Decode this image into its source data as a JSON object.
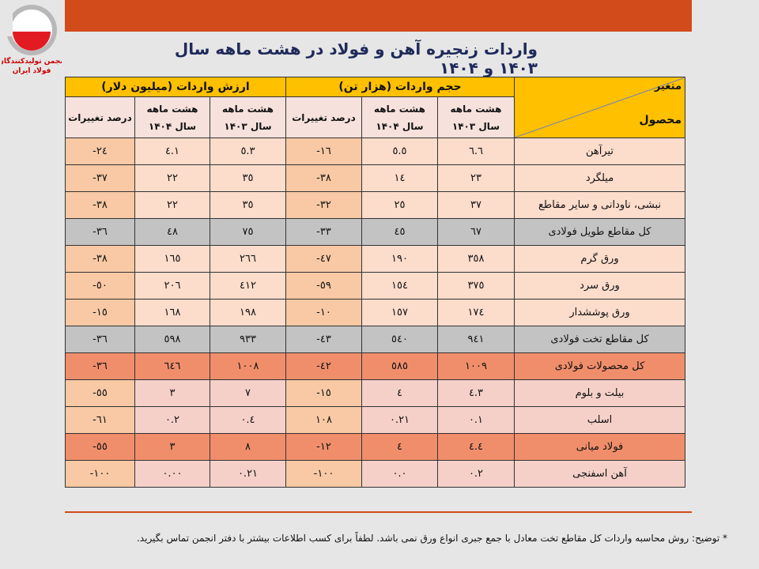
{
  "logo_text": [
    "انجمن تولیدکنندگان",
    "فولاد ایران"
  ],
  "colors": {
    "brand_bar": "#d24b1a",
    "header": "#ffc000",
    "total_row": "#f08e6b",
    "subtotal_row": "#c3c3c3"
  },
  "title": "واردات زنجیره آهن و فولاد در هشت ماهه سال ۱۴۰۳ و ۱۴۰۴",
  "table": {
    "corner_top": "متغیر",
    "corner_bottom": "محصول",
    "group_volume": "حجم واردات (هزار تن)",
    "group_value": "ارزش واردات (میلیون دلار)",
    "col_1403": [
      "هشت ماهه",
      "سال ۱۴۰۳"
    ],
    "col_1404": [
      "هشت ماهه",
      "سال ۱۴۰۴"
    ],
    "col_pct": "درصد تغییرات",
    "rows": [
      {
        "name": "تیرآهن",
        "v03": "٦.٦",
        "v04": "٥.٥",
        "vp": "-١٦",
        "d03": "٥.٣",
        "d04": "٤.١",
        "dp": "-٢٤",
        "style": ""
      },
      {
        "name": "میلگرد",
        "v03": "٢٣",
        "v04": "١٤",
        "vp": "-٣٨",
        "d03": "٣٥",
        "d04": "٢٢",
        "dp": "-٣٧",
        "style": ""
      },
      {
        "name": "نبشی، ناودانی و سایر مقاطع",
        "v03": "٣٧",
        "v04": "٢٥",
        "vp": "-٣٢",
        "d03": "٣٥",
        "d04": "٢٢",
        "dp": "-٣٨",
        "style": ""
      },
      {
        "name": "کل مقاطع طویل فولادی",
        "v03": "٦٧",
        "v04": "٤٥",
        "vp": "-٣٣",
        "d03": "٧٥",
        "d04": "٤٨",
        "dp": "-٣٦",
        "style": "gray"
      },
      {
        "name": "ورق گرم",
        "v03": "٣٥٨",
        "v04": "١٩٠",
        "vp": "-٤٧",
        "d03": "٢٦٦",
        "d04": "١٦٥",
        "dp": "-٣٨",
        "style": ""
      },
      {
        "name": "ورق سرد",
        "v03": "٣٧٥",
        "v04": "١٥٤",
        "vp": "-٥٩",
        "d03": "٤١٢",
        "d04": "٢٠٦",
        "dp": "-٥٠",
        "style": ""
      },
      {
        "name": "ورق پوششدار",
        "v03": "١٧٤",
        "v04": "١٥٧",
        "vp": "-١٠",
        "d03": "١٩٨",
        "d04": "١٦٨",
        "dp": "-١٥",
        "style": ""
      },
      {
        "name": "کل مقاطع تخت فولادی",
        "v03": "٩٤١",
        "v04": "٥٤٠",
        "vp": "-٤٣",
        "d03": "٩٣٣",
        "d04": "٥٩٨",
        "dp": "-٣٦",
        "style": "gray"
      },
      {
        "name": "کل محصولات فولادی",
        "v03": "١٠٠٩",
        "v04": "٥٨٥",
        "vp": "-٤٢",
        "d03": "١٠٠٨",
        "d04": "٦٤٦",
        "dp": "-٣٦",
        "style": "total"
      },
      {
        "name": "بیلت و بلوم",
        "v03": "٤.٣",
        "v04": "٤",
        "vp": "-١٥",
        "d03": "٧",
        "d04": "٣",
        "dp": "-٥٥",
        "style": "pink"
      },
      {
        "name": "اسلب",
        "v03": "٠.١",
        "v04": "٠.٢١",
        "vp": "١٠٨",
        "d03": "٠.٤",
        "d04": "٠.٢",
        "dp": "-٦١",
        "style": "pink"
      },
      {
        "name": "فولاد میانی",
        "v03": "٤.٤",
        "v04": "٤",
        "vp": "-١٢",
        "d03": "٨",
        "d04": "٣",
        "dp": "-٥٥",
        "style": "total"
      },
      {
        "name": "آهن اسفنجی",
        "v03": "٠.٢",
        "v04": "٠.٠",
        "vp": "-١٠٠",
        "d03": "٠.٢١",
        "d04": "٠.٠٠",
        "dp": "-١٠٠",
        "style": "pink"
      }
    ]
  },
  "footnote": "* توضیح: روش محاسبه واردات کل مقاطع تخت معادل با جمع جبری انواع ورق نمی باشد. لطفاً برای کسب اطلاعات بیشتر با دفتر انجمن تماس بگیرید."
}
